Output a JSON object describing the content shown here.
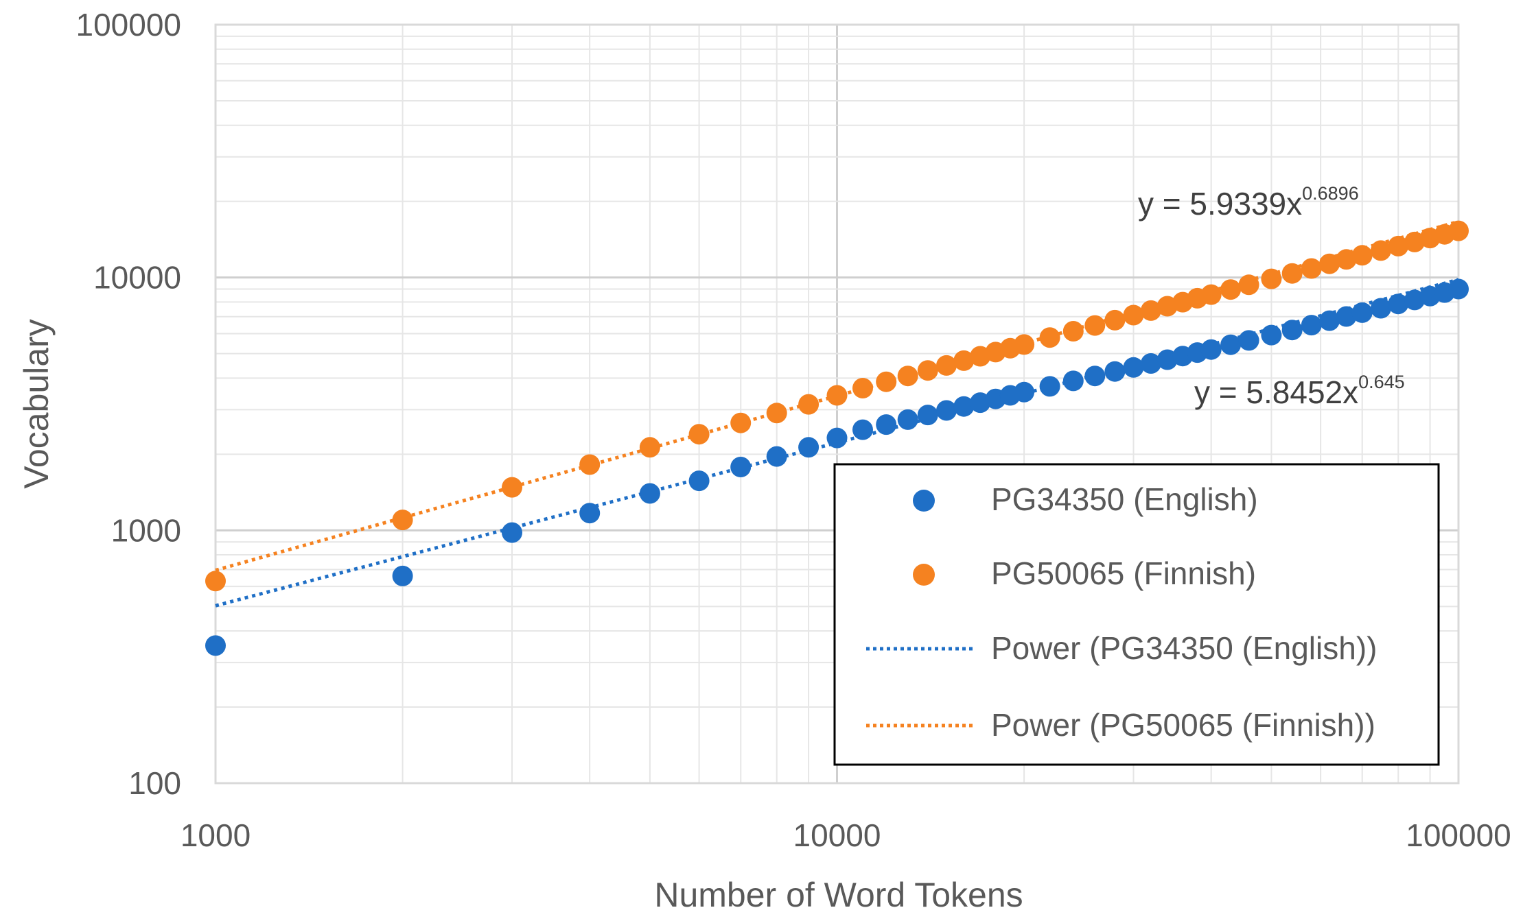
{
  "chart_data": {
    "type": "scatter",
    "xlabel": "Number of Word Tokens",
    "ylabel": "Vocabulary",
    "xscale": "log",
    "yscale": "log",
    "xlim": [
      1000,
      100000
    ],
    "ylim": [
      100,
      100000
    ],
    "xticks": [
      "1000",
      "10000",
      "100000"
    ],
    "yticks": [
      "100",
      "1000",
      "10000",
      "100000"
    ],
    "grid": true,
    "legend_position": "lower-right",
    "series": [
      {
        "name": "PG34350 (English)",
        "color": "#1f6fc6",
        "x": [
          1000,
          2000,
          3000,
          4000,
          5000,
          6000,
          7000,
          8000,
          9000,
          10000,
          11000,
          12000,
          13000,
          14000,
          15000,
          16000,
          17000,
          18000,
          19000,
          20000,
          22000,
          24000,
          26000,
          28000,
          30000,
          32000,
          34000,
          36000,
          38000,
          40000,
          43000,
          46000,
          50000,
          54000,
          58000,
          62000,
          66000,
          70000,
          75000,
          80000,
          85000,
          90000,
          95000,
          100000
        ],
        "y": [
          350,
          660,
          980,
          1170,
          1400,
          1570,
          1780,
          1960,
          2130,
          2320,
          2500,
          2620,
          2740,
          2860,
          2980,
          3090,
          3200,
          3310,
          3420,
          3520,
          3710,
          3900,
          4080,
          4250,
          4410,
          4570,
          4730,
          4890,
          5050,
          5190,
          5420,
          5640,
          5920,
          6200,
          6480,
          6750,
          7010,
          7260,
          7560,
          7860,
          8150,
          8440,
          8720,
          9000
        ]
      },
      {
        "name": "PG50065 (Finnish)",
        "color": "#f58220",
        "x": [
          1000,
          2000,
          3000,
          4000,
          5000,
          6000,
          7000,
          8000,
          9000,
          10000,
          11000,
          12000,
          13000,
          14000,
          15000,
          16000,
          17000,
          18000,
          19000,
          20000,
          22000,
          24000,
          26000,
          28000,
          30000,
          32000,
          34000,
          36000,
          38000,
          40000,
          43000,
          46000,
          50000,
          54000,
          58000,
          62000,
          66000,
          70000,
          75000,
          80000,
          85000,
          90000,
          95000,
          100000
        ],
        "y": [
          630,
          1100,
          1480,
          1820,
          2130,
          2400,
          2660,
          2910,
          3150,
          3420,
          3650,
          3870,
          4080,
          4290,
          4490,
          4690,
          4880,
          5070,
          5250,
          5430,
          5790,
          6130,
          6460,
          6780,
          7100,
          7400,
          7700,
          7990,
          8280,
          8560,
          8960,
          9360,
          9880,
          10380,
          10860,
          11330,
          11790,
          12240,
          12780,
          13310,
          13820,
          14330,
          14820,
          15300
        ]
      },
      {
        "name": "Power (PG34350 (English))",
        "kind": "trendline",
        "color": "#1f6fc6",
        "coefficient": 5.8452,
        "exponent": 0.645,
        "equation_main": "y = 5.8452x",
        "equation_exp": "0.645"
      },
      {
        "name": "Power (PG50065 (Finnish))",
        "kind": "trendline",
        "color": "#f58220",
        "coefficient": 5.9339,
        "exponent": 0.6896,
        "equation_main": "y = 5.9339x",
        "equation_exp": "0.6896"
      }
    ]
  }
}
